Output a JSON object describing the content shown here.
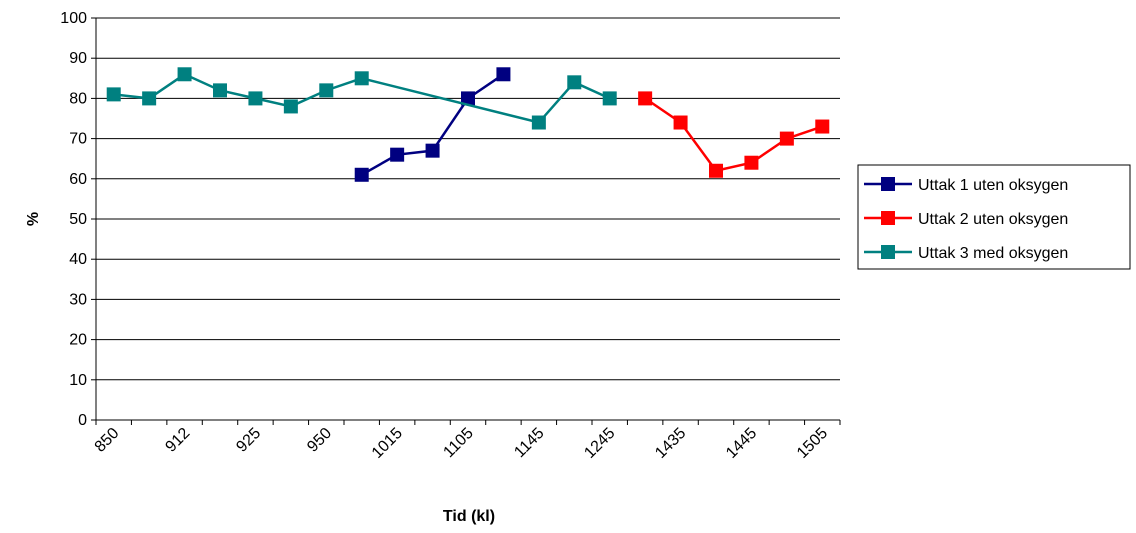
{
  "chart_data": {
    "type": "line",
    "title": "",
    "xlabel": "Tid (kl)",
    "ylabel": "%",
    "ylim": [
      0,
      100
    ],
    "y_ticks": [
      0,
      10,
      20,
      30,
      40,
      50,
      60,
      70,
      80,
      90,
      100
    ],
    "x_tick_labels": [
      "850",
      "912",
      "925",
      "950",
      "1015",
      "1105",
      "1145",
      "1245",
      "1435",
      "1445",
      "1505"
    ],
    "grid": "horizontal",
    "legend_position": "right",
    "series": [
      {
        "name": "Uttak 1 uten oksygen",
        "color": "#000080",
        "points": [
          [
            7,
            61
          ],
          [
            8,
            66
          ],
          [
            9,
            67
          ],
          [
            10,
            80
          ],
          [
            11,
            86
          ]
        ]
      },
      {
        "name": "Uttak 2 uten oksygen",
        "color": "#ff0000",
        "points": [
          [
            15,
            80
          ],
          [
            16,
            74
          ],
          [
            17,
            62
          ],
          [
            18,
            64
          ],
          [
            19,
            70
          ],
          [
            20,
            73
          ]
        ]
      },
      {
        "name": "Uttak 3 med oksygen",
        "color": "#008080",
        "points": [
          [
            0,
            81
          ],
          [
            1,
            80
          ],
          [
            2,
            86
          ],
          [
            3,
            82
          ],
          [
            4,
            80
          ],
          [
            5,
            78
          ],
          [
            6,
            82
          ],
          [
            7,
            85
          ],
          [
            12,
            74
          ],
          [
            13,
            84
          ],
          [
            14,
            80
          ]
        ]
      }
    ]
  }
}
